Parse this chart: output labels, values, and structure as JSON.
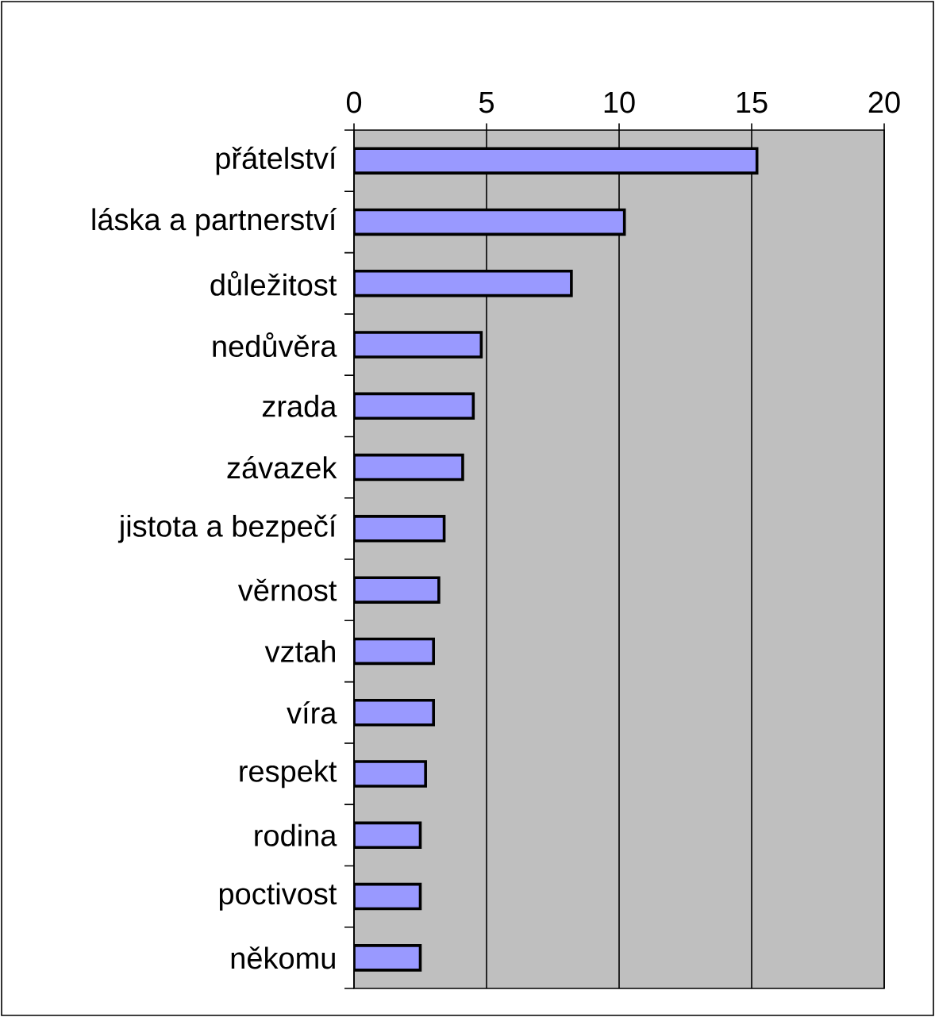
{
  "chart_data": {
    "type": "bar",
    "orientation": "horizontal",
    "categories": [
      "přátelství",
      "láska a partnerství",
      "důležitost",
      "nedůvěra",
      "zrada",
      "závazek",
      "jistota a bezpečí",
      "věrnost",
      "vztah",
      "víra",
      "respekt",
      "rodina",
      "poctivost",
      "někomu"
    ],
    "values": [
      15.2,
      10.2,
      8.2,
      4.8,
      4.5,
      4.1,
      3.4,
      3.2,
      3.0,
      3.0,
      2.7,
      2.5,
      2.5,
      2.5
    ],
    "color": "#9999ff",
    "xlim": [
      0,
      20
    ],
    "xticks": [
      0,
      5,
      10,
      15,
      20
    ],
    "grid": "x"
  }
}
